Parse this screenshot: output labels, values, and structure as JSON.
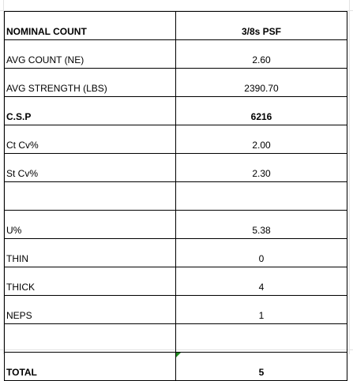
{
  "rows": [
    {
      "label": "NOMINAL COUNT",
      "value": "3/8s PSF",
      "bold": true
    },
    {
      "label": "AVG COUNT (NE)",
      "value": "2.60",
      "bold": false
    },
    {
      "label": "AVG STRENGTH (LBS)",
      "value": "2390.70",
      "bold": false
    },
    {
      "label": "C.S.P",
      "value": "6216",
      "bold": true
    },
    {
      "label": "Ct Cv%",
      "value": "2.00",
      "bold": false
    },
    {
      "label": "St Cv%",
      "value": "2.30",
      "bold": false
    },
    {
      "label": "",
      "value": "",
      "bold": false
    },
    {
      "label": "U%",
      "value": "5.38",
      "bold": false
    },
    {
      "label": "THIN",
      "value": "0",
      "bold": false
    },
    {
      "label": "THICK",
      "value": "4",
      "bold": false
    },
    {
      "label": "NEPS",
      "value": "1",
      "bold": false
    },
    {
      "label": "",
      "value": "",
      "bold": false
    },
    {
      "label": "TOTAL",
      "value": "5",
      "bold": true
    }
  ],
  "colors": {
    "border": "#000000",
    "gridline": "#e3e3e3",
    "comment_marker": "#1f8a1f"
  }
}
